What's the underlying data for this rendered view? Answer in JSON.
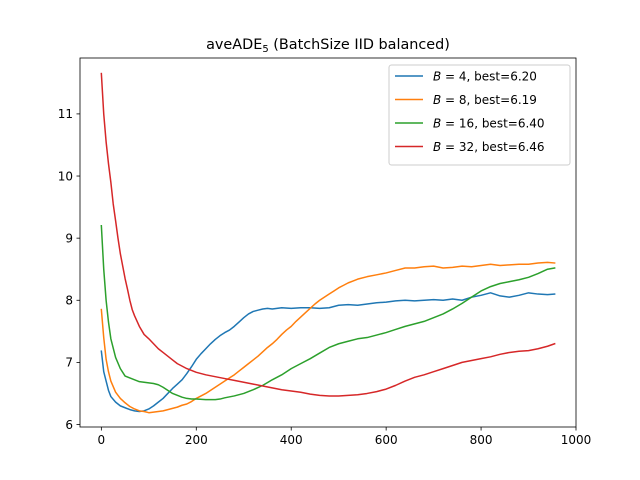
{
  "chart_data": {
    "type": "line",
    "title_main": "aveADE",
    "title_sub": "5",
    "title_rest": " (BatchSize IID balanced)",
    "xlabel": "",
    "ylabel": "",
    "xlim": [
      -45,
      1000
    ],
    "ylim": [
      5.96,
      11.9
    ],
    "xticks": [
      0,
      200,
      400,
      600,
      800,
      1000
    ],
    "yticks": [
      6,
      7,
      8,
      9,
      10,
      11
    ],
    "grid": false,
    "legend_position": "top-right",
    "series": [
      {
        "name": "B = 4, best=6.20",
        "legend_var": "B",
        "legend_rest": " = 4, best=6.20",
        "color": "#1f77b4",
        "points": [
          [
            0,
            7.18
          ],
          [
            5,
            6.85
          ],
          [
            10,
            6.7
          ],
          [
            15,
            6.55
          ],
          [
            20,
            6.45
          ],
          [
            30,
            6.36
          ],
          [
            40,
            6.3
          ],
          [
            50,
            6.27
          ],
          [
            60,
            6.24
          ],
          [
            70,
            6.22
          ],
          [
            80,
            6.21
          ],
          [
            90,
            6.22
          ],
          [
            100,
            6.25
          ],
          [
            110,
            6.3
          ],
          [
            120,
            6.36
          ],
          [
            130,
            6.42
          ],
          [
            140,
            6.5
          ],
          [
            150,
            6.58
          ],
          [
            160,
            6.65
          ],
          [
            170,
            6.72
          ],
          [
            180,
            6.82
          ],
          [
            190,
            6.93
          ],
          [
            200,
            7.05
          ],
          [
            210,
            7.14
          ],
          [
            220,
            7.22
          ],
          [
            230,
            7.3
          ],
          [
            240,
            7.37
          ],
          [
            250,
            7.43
          ],
          [
            260,
            7.48
          ],
          [
            270,
            7.52
          ],
          [
            280,
            7.58
          ],
          [
            290,
            7.65
          ],
          [
            300,
            7.72
          ],
          [
            310,
            7.78
          ],
          [
            320,
            7.82
          ],
          [
            330,
            7.84
          ],
          [
            340,
            7.86
          ],
          [
            350,
            7.87
          ],
          [
            360,
            7.86
          ],
          [
            380,
            7.88
          ],
          [
            400,
            7.87
          ],
          [
            420,
            7.88
          ],
          [
            440,
            7.88
          ],
          [
            460,
            7.87
          ],
          [
            480,
            7.88
          ],
          [
            500,
            7.92
          ],
          [
            520,
            7.93
          ],
          [
            540,
            7.92
          ],
          [
            560,
            7.94
          ],
          [
            580,
            7.96
          ],
          [
            600,
            7.97
          ],
          [
            620,
            7.99
          ],
          [
            640,
            8.0
          ],
          [
            660,
            7.99
          ],
          [
            680,
            8.0
          ],
          [
            700,
            8.01
          ],
          [
            720,
            8.0
          ],
          [
            740,
            8.02
          ],
          [
            760,
            8.0
          ],
          [
            780,
            8.05
          ],
          [
            800,
            8.08
          ],
          [
            820,
            8.12
          ],
          [
            840,
            8.07
          ],
          [
            860,
            8.05
          ],
          [
            880,
            8.08
          ],
          [
            900,
            8.12
          ],
          [
            920,
            8.1
          ],
          [
            940,
            8.09
          ],
          [
            955,
            8.1
          ]
        ]
      },
      {
        "name": "B = 8, best=6.19",
        "legend_var": "B",
        "legend_rest": " = 8, best=6.19",
        "color": "#ff7f0e",
        "points": [
          [
            0,
            7.85
          ],
          [
            5,
            7.4
          ],
          [
            10,
            7.05
          ],
          [
            15,
            6.85
          ],
          [
            20,
            6.7
          ],
          [
            30,
            6.52
          ],
          [
            40,
            6.42
          ],
          [
            50,
            6.35
          ],
          [
            60,
            6.29
          ],
          [
            70,
            6.25
          ],
          [
            80,
            6.22
          ],
          [
            90,
            6.21
          ],
          [
            100,
            6.19
          ],
          [
            110,
            6.2
          ],
          [
            120,
            6.21
          ],
          [
            130,
            6.22
          ],
          [
            140,
            6.24
          ],
          [
            150,
            6.26
          ],
          [
            160,
            6.28
          ],
          [
            170,
            6.31
          ],
          [
            180,
            6.33
          ],
          [
            190,
            6.37
          ],
          [
            200,
            6.42
          ],
          [
            210,
            6.46
          ],
          [
            220,
            6.5
          ],
          [
            230,
            6.55
          ],
          [
            240,
            6.6
          ],
          [
            250,
            6.65
          ],
          [
            260,
            6.7
          ],
          [
            270,
            6.75
          ],
          [
            280,
            6.8
          ],
          [
            290,
            6.86
          ],
          [
            300,
            6.92
          ],
          [
            310,
            6.98
          ],
          [
            320,
            7.04
          ],
          [
            330,
            7.1
          ],
          [
            340,
            7.17
          ],
          [
            350,
            7.24
          ],
          [
            360,
            7.3
          ],
          [
            370,
            7.37
          ],
          [
            380,
            7.45
          ],
          [
            390,
            7.52
          ],
          [
            400,
            7.58
          ],
          [
            410,
            7.66
          ],
          [
            420,
            7.73
          ],
          [
            430,
            7.8
          ],
          [
            440,
            7.87
          ],
          [
            450,
            7.94
          ],
          [
            460,
            8.0
          ],
          [
            470,
            8.05
          ],
          [
            480,
            8.1
          ],
          [
            490,
            8.15
          ],
          [
            500,
            8.2
          ],
          [
            510,
            8.24
          ],
          [
            520,
            8.28
          ],
          [
            530,
            8.31
          ],
          [
            540,
            8.34
          ],
          [
            560,
            8.38
          ],
          [
            580,
            8.41
          ],
          [
            600,
            8.44
          ],
          [
            620,
            8.48
          ],
          [
            640,
            8.52
          ],
          [
            660,
            8.52
          ],
          [
            680,
            8.54
          ],
          [
            700,
            8.55
          ],
          [
            720,
            8.52
          ],
          [
            740,
            8.53
          ],
          [
            760,
            8.55
          ],
          [
            780,
            8.54
          ],
          [
            800,
            8.56
          ],
          [
            820,
            8.58
          ],
          [
            840,
            8.56
          ],
          [
            860,
            8.57
          ],
          [
            880,
            8.58
          ],
          [
            900,
            8.58
          ],
          [
            920,
            8.6
          ],
          [
            940,
            8.61
          ],
          [
            955,
            8.6
          ]
        ]
      },
      {
        "name": "B = 16, best=6.40",
        "legend_var": "B",
        "legend_rest": " = 16, best=6.40",
        "color": "#2ca02c",
        "points": [
          [
            0,
            9.2
          ],
          [
            5,
            8.5
          ],
          [
            10,
            8.0
          ],
          [
            15,
            7.65
          ],
          [
            20,
            7.38
          ],
          [
            30,
            7.08
          ],
          [
            40,
            6.9
          ],
          [
            50,
            6.78
          ],
          [
            60,
            6.75
          ],
          [
            70,
            6.72
          ],
          [
            80,
            6.69
          ],
          [
            90,
            6.68
          ],
          [
            100,
            6.67
          ],
          [
            110,
            6.66
          ],
          [
            120,
            6.64
          ],
          [
            130,
            6.6
          ],
          [
            140,
            6.55
          ],
          [
            150,
            6.5
          ],
          [
            160,
            6.47
          ],
          [
            170,
            6.44
          ],
          [
            180,
            6.42
          ],
          [
            190,
            6.41
          ],
          [
            200,
            6.41
          ],
          [
            220,
            6.4
          ],
          [
            240,
            6.4
          ],
          [
            250,
            6.41
          ],
          [
            260,
            6.43
          ],
          [
            280,
            6.46
          ],
          [
            300,
            6.5
          ],
          [
            320,
            6.56
          ],
          [
            340,
            6.63
          ],
          [
            360,
            6.72
          ],
          [
            380,
            6.8
          ],
          [
            400,
            6.9
          ],
          [
            420,
            6.98
          ],
          [
            440,
            7.06
          ],
          [
            460,
            7.15
          ],
          [
            480,
            7.24
          ],
          [
            500,
            7.3
          ],
          [
            520,
            7.34
          ],
          [
            540,
            7.38
          ],
          [
            560,
            7.4
          ],
          [
            580,
            7.44
          ],
          [
            600,
            7.48
          ],
          [
            620,
            7.53
          ],
          [
            640,
            7.58
          ],
          [
            660,
            7.62
          ],
          [
            680,
            7.66
          ],
          [
            700,
            7.72
          ],
          [
            720,
            7.78
          ],
          [
            740,
            7.86
          ],
          [
            760,
            7.95
          ],
          [
            780,
            8.05
          ],
          [
            800,
            8.15
          ],
          [
            820,
            8.22
          ],
          [
            840,
            8.27
          ],
          [
            860,
            8.3
          ],
          [
            880,
            8.33
          ],
          [
            900,
            8.37
          ],
          [
            920,
            8.43
          ],
          [
            940,
            8.5
          ],
          [
            955,
            8.52
          ]
        ]
      },
      {
        "name": "B = 32, best=6.46",
        "legend_var": "B",
        "legend_rest": " = 32, best=6.46",
        "color": "#d62728",
        "points": [
          [
            0,
            11.65
          ],
          [
            5,
            11.0
          ],
          [
            10,
            10.55
          ],
          [
            15,
            10.2
          ],
          [
            20,
            9.9
          ],
          [
            25,
            9.55
          ],
          [
            30,
            9.28
          ],
          [
            35,
            9.0
          ],
          [
            40,
            8.75
          ],
          [
            45,
            8.55
          ],
          [
            50,
            8.35
          ],
          [
            55,
            8.18
          ],
          [
            60,
            8.0
          ],
          [
            65,
            7.85
          ],
          [
            70,
            7.75
          ],
          [
            80,
            7.58
          ],
          [
            90,
            7.45
          ],
          [
            100,
            7.38
          ],
          [
            110,
            7.3
          ],
          [
            120,
            7.22
          ],
          [
            130,
            7.16
          ],
          [
            140,
            7.1
          ],
          [
            150,
            7.04
          ],
          [
            160,
            6.98
          ],
          [
            170,
            6.94
          ],
          [
            180,
            6.9
          ],
          [
            190,
            6.87
          ],
          [
            200,
            6.84
          ],
          [
            220,
            6.8
          ],
          [
            240,
            6.77
          ],
          [
            260,
            6.74
          ],
          [
            280,
            6.71
          ],
          [
            300,
            6.68
          ],
          [
            320,
            6.65
          ],
          [
            340,
            6.62
          ],
          [
            360,
            6.59
          ],
          [
            380,
            6.56
          ],
          [
            400,
            6.54
          ],
          [
            420,
            6.52
          ],
          [
            440,
            6.49
          ],
          [
            460,
            6.47
          ],
          [
            480,
            6.46
          ],
          [
            500,
            6.46
          ],
          [
            520,
            6.47
          ],
          [
            540,
            6.48
          ],
          [
            560,
            6.5
          ],
          [
            580,
            6.53
          ],
          [
            600,
            6.57
          ],
          [
            620,
            6.63
          ],
          [
            640,
            6.7
          ],
          [
            660,
            6.76
          ],
          [
            680,
            6.8
          ],
          [
            700,
            6.85
          ],
          [
            720,
            6.9
          ],
          [
            740,
            6.95
          ],
          [
            760,
            7.0
          ],
          [
            780,
            7.03
          ],
          [
            800,
            7.06
          ],
          [
            820,
            7.09
          ],
          [
            840,
            7.13
          ],
          [
            860,
            7.16
          ],
          [
            880,
            7.18
          ],
          [
            900,
            7.19
          ],
          [
            920,
            7.22
          ],
          [
            940,
            7.26
          ],
          [
            955,
            7.3
          ]
        ]
      }
    ]
  }
}
